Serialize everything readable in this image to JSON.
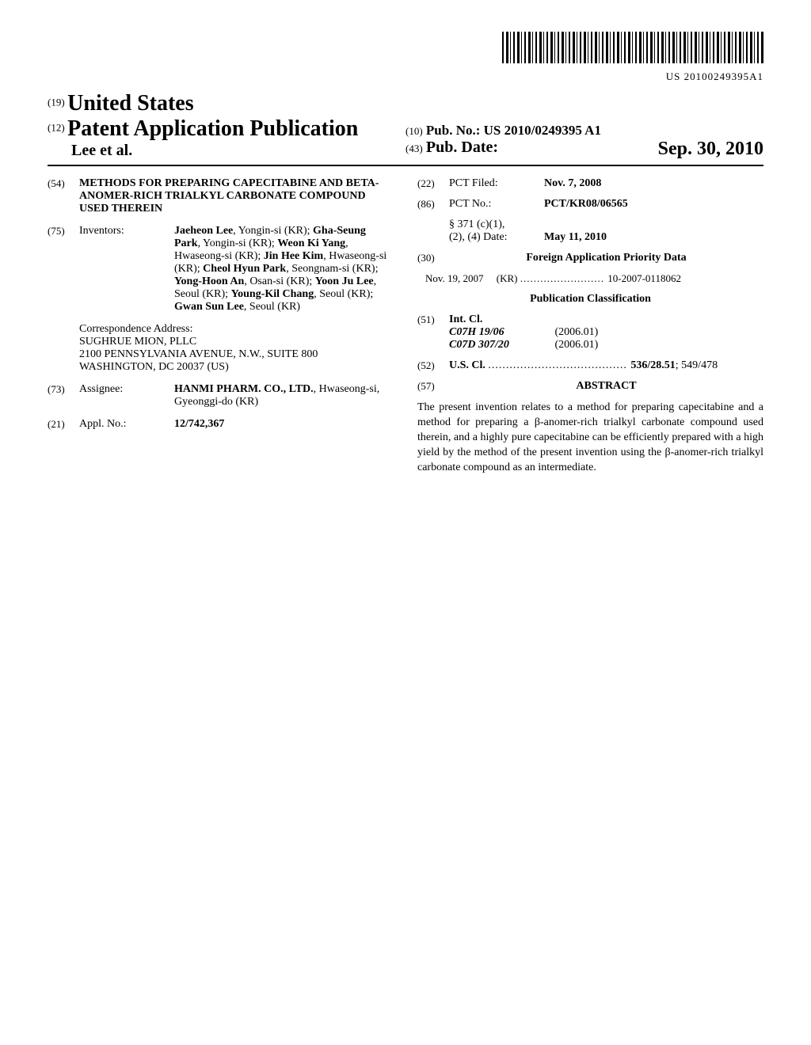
{
  "barcode_text": "US 20100249395A1",
  "header": {
    "prefix19": "(19)",
    "country": "United States",
    "prefix12": "(12)",
    "pub_type": "Patent Application Publication",
    "authors": "Lee et al.",
    "prefix10": "(10)",
    "pub_no_label": "Pub. No.:",
    "pub_no": "US 2010/0249395 A1",
    "prefix43": "(43)",
    "pub_date_label": "Pub. Date:",
    "pub_date": "Sep. 30, 2010"
  },
  "left": {
    "title_num": "(54)",
    "title": "METHODS FOR PREPARING CAPECITABINE AND BETA-ANOMER-RICH TRIALKYL CARBONATE COMPOUND USED THEREIN",
    "inventors_num": "(75)",
    "inventors_label": "Inventors:",
    "inventors": [
      {
        "name": "Jaeheon Lee",
        "loc": ", Yongin-si (KR); "
      },
      {
        "name": "Gha-Seung Park",
        "loc": ", Yongin-si (KR); "
      },
      {
        "name": "Weon Ki Yang",
        "loc": ", Hwaseong-si (KR); "
      },
      {
        "name": "Jin Hee Kim",
        "loc": ", Hwaseong-si (KR); "
      },
      {
        "name": "Cheol Hyun Park",
        "loc": ", Seongnam-si (KR); "
      },
      {
        "name": "Yong-Hoon An",
        "loc": ", Osan-si (KR); "
      },
      {
        "name": "Yoon Ju Lee",
        "loc": ", Seoul (KR); "
      },
      {
        "name": "Young-Kil Chang",
        "loc": ", Seoul (KR); "
      },
      {
        "name": "Gwan Sun Lee",
        "loc": ", Seoul (KR)"
      }
    ],
    "correspondence_label": "Correspondence Address:",
    "correspondence_lines": [
      "SUGHRUE MION, PLLC",
      "2100 PENNSYLVANIA AVENUE, N.W., SUITE 800",
      "WASHINGTON, DC 20037 (US)"
    ],
    "assignee_num": "(73)",
    "assignee_label": "Assignee:",
    "assignee_name": "HANMI PHARM. CO., LTD.",
    "assignee_loc": ", Hwaseong-si, Gyeonggi-do (KR)",
    "appl_num": "(21)",
    "appl_label": "Appl. No.:",
    "appl_value": "12/742,367"
  },
  "right": {
    "pct_filed_num": "(22)",
    "pct_filed_label": "PCT Filed:",
    "pct_filed_value": "Nov. 7, 2008",
    "pct_no_num": "(86)",
    "pct_no_label": "PCT No.:",
    "pct_no_value": "PCT/KR08/06565",
    "s371_label1": "§ 371 (c)(1),",
    "s371_label2": "(2), (4) Date:",
    "s371_value": "May 11, 2010",
    "foreign_num": "(30)",
    "foreign_heading": "Foreign Application Priority Data",
    "priority_date": "Nov. 19, 2007",
    "priority_country": "(KR)",
    "priority_dots": " ......................... ",
    "priority_app": "10-2007-0118062",
    "pub_class_heading": "Publication Classification",
    "intcl_num": "(51)",
    "intcl_label": "Int. Cl.",
    "intcl_rows": [
      {
        "code": "C07H 19/06",
        "year": "(2006.01)"
      },
      {
        "code": "C07D 307/20",
        "year": "(2006.01)"
      }
    ],
    "uscl_num": "(52)",
    "uscl_label": "U.S. Cl.",
    "uscl_dots": " ....................................... ",
    "uscl_primary": "536/28.51",
    "uscl_secondary": "; 549/478",
    "abstract_num": "(57)",
    "abstract_heading": "ABSTRACT",
    "abstract_text": "The present invention relates to a method for preparing capecitabine and a method for preparing a β-anomer-rich trialkyl carbonate compound used therein, and a highly pure capecitabine can be efficiently prepared with a high yield by the method of the present invention using the β-anomer-rich trialkyl carbonate compound as an intermediate."
  }
}
